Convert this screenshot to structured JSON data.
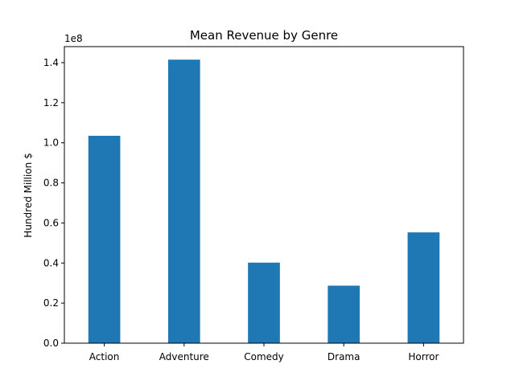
{
  "chart_data": {
    "type": "bar",
    "title": "Mean Revenue by Genre",
    "xlabel": "",
    "ylabel": "Hundred Million $",
    "y_offset_label": "1e8",
    "categories": [
      "Action",
      "Adventure",
      "Comedy",
      "Drama",
      "Horror"
    ],
    "values": [
      103500000,
      141500000,
      40200000,
      28700000,
      55300000
    ],
    "ylim": [
      0,
      148000000
    ],
    "yticks": [
      0,
      20000000,
      40000000,
      60000000,
      80000000,
      100000000,
      120000000,
      140000000
    ],
    "ytick_labels": [
      "0.0",
      "0.2",
      "0.4",
      "0.6",
      "0.8",
      "1.0",
      "1.2",
      "1.4"
    ],
    "grid": false,
    "legend": "none",
    "bar_color": "#1f77b4"
  }
}
